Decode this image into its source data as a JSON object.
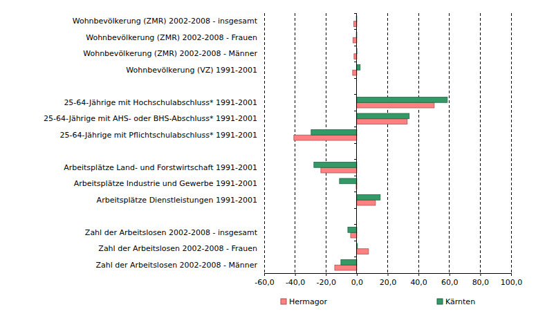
{
  "chart_data": {
    "type": "bar",
    "orientation": "horizontal",
    "categories": [
      "Wohnbevölkerung (ZMR) 2002-2008 - insgesamt",
      "Wohnbevölkerung (ZMR) 2002-2008 - Frauen",
      "Wohnbevölkerung (ZMR) 2002-2008 - Männer",
      "Wohnbevölkerung (VZ) 1991-2001",
      null,
      "25-64-Jährige mit Hochschulabschluss* 1991-2001",
      "25-64-Jährige mit AHS- oder BHS-Abschluss* 1991-2001",
      "25-64-Jährige mit Pflichtschulabschluss* 1991-2001",
      null,
      "Arbeitsplätze Land- und Forstwirtschaft 1991-2001",
      "Arbeitsplätze Industrie und Gewerbe 1991-2001",
      "Arbeitsplätze Dienstleistungen 1991-2001",
      null,
      "Zahl der Arbeitslosen 2002-2008 - insgesamt",
      "Zahl der Arbeitslosen 2002-2008 - Frauen",
      "Zahl der Arbeitslosen 2002-2008 - Männer"
    ],
    "series": [
      {
        "name": "Hermagor",
        "color": "#ff8080",
        "values": [
          -2.0,
          -2.5,
          -1.8,
          -2.7,
          null,
          50.2,
          32.7,
          -40.8,
          null,
          -23.3,
          -0.4,
          12.1,
          null,
          -4.0,
          7.6,
          -14.3
        ]
      },
      {
        "name": "Kärnten",
        "color": "#339966",
        "values": [
          -0.3,
          -0.3,
          0.1,
          2.2,
          null,
          58.7,
          34.0,
          -29.6,
          null,
          -27.8,
          -11.2,
          15.2,
          null,
          -5.8,
          0.4,
          -10.3
        ]
      }
    ],
    "xlim": [
      -60,
      100
    ],
    "xticks": [
      {
        "value": -60,
        "label": "-60,0"
      },
      {
        "value": -40,
        "label": "-40,0"
      },
      {
        "value": -20,
        "label": "-20,0"
      },
      {
        "value": 0,
        "label": "0,0"
      },
      {
        "value": 20,
        "label": "20,0"
      },
      {
        "value": 40,
        "label": "40,0"
      },
      {
        "value": 60,
        "label": "60,0"
      },
      {
        "value": 80,
        "label": "80,0"
      },
      {
        "value": 100,
        "label": "100,0"
      }
    ],
    "grid": true,
    "legend": "bottom"
  }
}
